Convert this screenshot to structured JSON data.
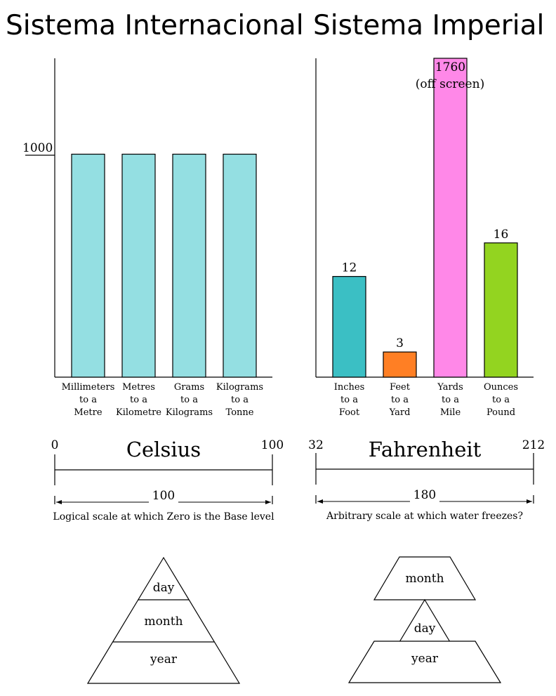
{
  "titles": {
    "left": "Sistema Internacional",
    "right": "Sistema Imperial"
  },
  "chart_data": [
    {
      "type": "bar",
      "title": "Sistema Internacional",
      "categories": [
        [
          "Millimeters",
          "to a",
          "Metre"
        ],
        [
          "Metres",
          "to a",
          "Kilometre"
        ],
        [
          "Grams",
          "to a",
          "Kilograms"
        ],
        [
          "Kilograms",
          "to a",
          "Tonne"
        ]
      ],
      "values": [
        1000,
        1000,
        1000,
        1000
      ],
      "ytick": "1000",
      "ylim": [
        0,
        1430
      ],
      "colors": [
        "#94dfe2",
        "#94dfe2",
        "#94dfe2",
        "#94dfe2"
      ]
    },
    {
      "type": "bar",
      "title": "Sistema Imperial",
      "categories": [
        [
          "Inches",
          "to a",
          "Foot"
        ],
        [
          "Feet",
          "to a",
          "Yard"
        ],
        [
          "Yards",
          "to a",
          "Mile"
        ],
        [
          "Ounces",
          "to a",
          "Pound"
        ]
      ],
      "values": [
        12,
        3,
        1760,
        16
      ],
      "data_labels": [
        "12",
        "3",
        "1760",
        "16"
      ],
      "off_screen_note": "(off screen)",
      "ylim": [
        0,
        38
      ],
      "colors": [
        "#3bbfc4",
        "#ff7f24",
        "#ff88e8",
        "#93d420"
      ]
    }
  ],
  "scales": {
    "celsius": {
      "name": "Celsius",
      "low": "0",
      "high": "100",
      "span": "100",
      "caption": "Logical scale at which Zero is the Base level"
    },
    "fahrenheit": {
      "name": "Fahrenheit",
      "low": "32",
      "high": "212",
      "span": "180",
      "caption": "Arbitrary scale at which water freezes?"
    }
  },
  "pyramids": {
    "left": {
      "top": "day",
      "middle": "month",
      "bottom": "year"
    },
    "right": {
      "top": "month",
      "middle": "day",
      "bottom": "year"
    }
  }
}
